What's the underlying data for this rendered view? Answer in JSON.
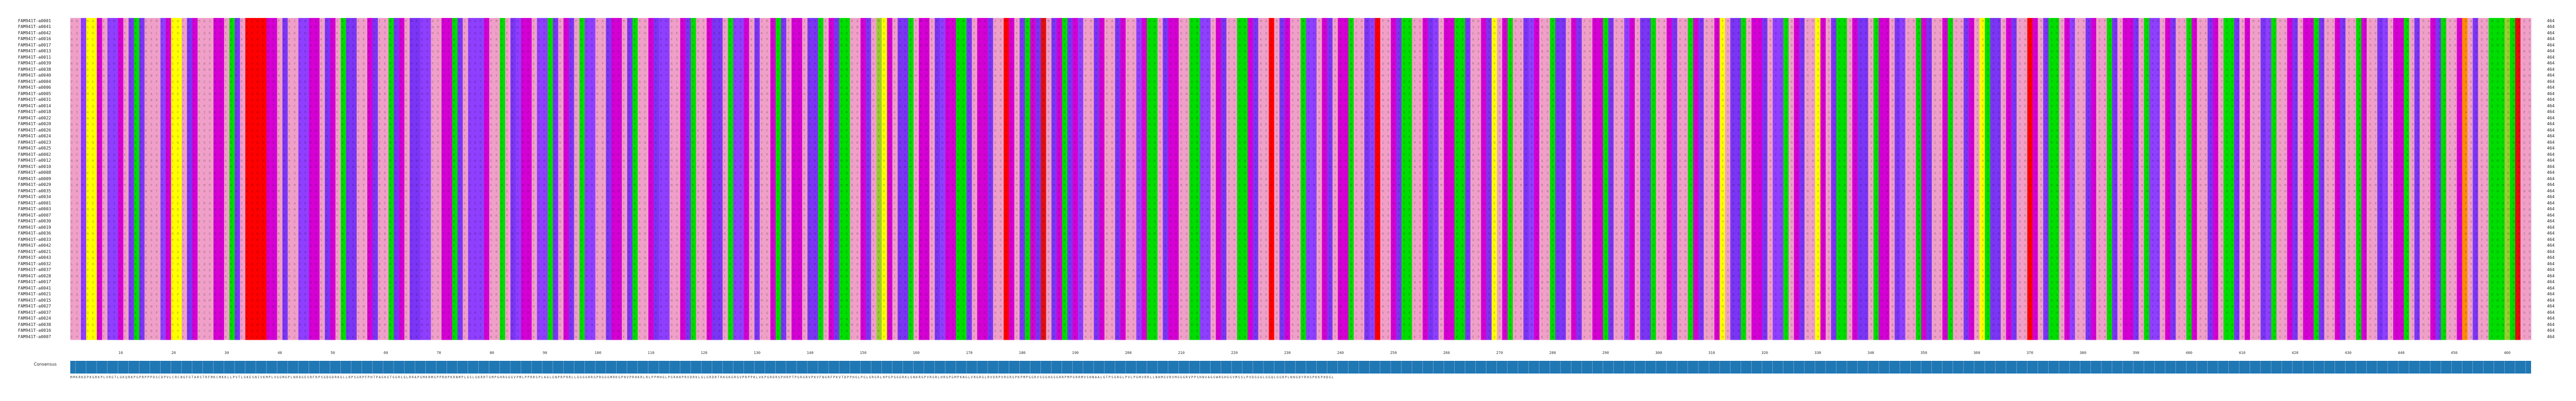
{
  "alignment": {
    "sequence_names": [
      "FAM941T-a0001",
      "FAM941T-a0041",
      "FAM941T-a0042",
      "FAM941T-a0016",
      "FAM941T-a0017",
      "FAM941T-a0013",
      "FAM941T-a0011",
      "FAM941T-a0039",
      "FAM941T-a0038",
      "FAM941T-a0040",
      "FAM941T-a0004",
      "FAM941T-a0006",
      "FAM941T-a0005",
      "FAM941T-a0031",
      "FAM941T-a0014",
      "FAM941T-a0018",
      "FAM941T-a0022",
      "FAM941T-a0020",
      "FAM941T-a0026",
      "FAM941T-a0024",
      "FAM941T-a0023",
      "FAM941T-a0025",
      "FAM941T-a0002",
      "FAM941T-a0012",
      "FAM941T-a0010",
      "FAM941T-a0008",
      "FAM941T-a0009",
      "FAM941T-a0029",
      "FAM941T-a0035",
      "FAM941T-a0034",
      "FAM941T-a0001",
      "FAM941T-a0003",
      "FAM941T-a0007",
      "FAM941T-a0030",
      "FAM941T-a0019",
      "FAM941T-a0036",
      "FAM941T-a0033",
      "FAM941T-a0042",
      "FAM941T-a0021",
      "FAM941T-a0043",
      "FAM941T-a0032",
      "FAM941T-a0037",
      "FAM941T-a0028",
      "FAM941T-a0017",
      "FAM941T-a0041",
      "FAM941T-a0021",
      "FAM941T-a0015",
      "FAM941T-a0027",
      "FAM941T-a0037",
      "FAM941T-a0024",
      "FAM941T-a0038",
      "FAM941T-a0016",
      "FAM941T-a0007"
    ],
    "sequence_length": "464",
    "ruler_ticks": [
      "10",
      "20",
      "30",
      "40",
      "50",
      "60",
      "70",
      "80",
      "90",
      "100",
      "110",
      "120",
      "130",
      "140",
      "150",
      "160",
      "170",
      "180",
      "190",
      "200",
      "210",
      "220",
      "230",
      "240",
      "250",
      "260",
      "270",
      "280",
      "290",
      "300",
      "310",
      "320",
      "330",
      "340",
      "350",
      "360",
      "370",
      "380",
      "390",
      "400",
      "410",
      "420",
      "430",
      "440",
      "450",
      "460"
    ],
    "consensus_label": "Consensus",
    "consensus_sequence": "MMKRKDPKGRKPLVRGTLGKQRKPGPRPPPDSCDPVLCRCNGFGTARSTRFMKCMKKLLPVTLGKESNIVKMPLVGGMGPLNRDGEGRFRPSGDGDRKGLLRPSGRPFPHTPAGKGTGGRLGLRRAPGMKRMGPPRHPKRNMPLGSLGKRRTGMPGHRGGGVPMLPPRRSPLAGLGNPRPRRLLGGGGRRGPRGGGMRKGPHVPRHKRLRLPPMHGLPGRHHPRVDRKLGLGRDRTRKGKGRGVPRPPKLVKPGRDRSPHRPTPGRGRVPKVFNGRFPKVTDPPHGLPGLGRGRLHPGPGGGRKLGNKRGPVRGRLHRGPGMPKNGLVRGRGLRVDRPVRGRSPKPMPGGRVSGGHGSGRRPMPGRRMVSHNAALGTPSGRGLPVLPGMVRRLLNHMSVRVMGGGRVPPSHNVAGGWRGHGGVMSSLPVDGGGLGGQLGGRPLNNGDYRHSPKKPHDGL",
    "colors": {
      "A": "#f0a0c8",
      "B": "#8f3fff",
      "C": "#ffff00",
      "D": "#d400d4",
      "E": "#7b35f5",
      "F": "#00dd00",
      "G": "#e8007a",
      "H": "#ff8c00",
      "I": "#ff0000",
      "J": "#0000aa",
      "K": "#e01010",
      "L": "#9acd32",
      "consensus_bar": "#1f77b4"
    }
  }
}
